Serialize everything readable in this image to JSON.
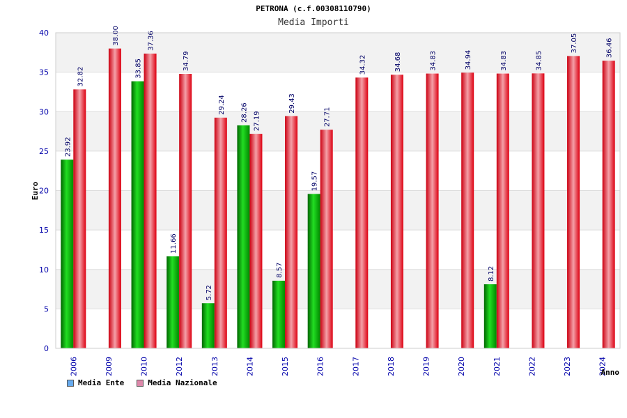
{
  "chart_data": {
    "type": "bar",
    "title": "PETRONA (c.f.00308110790)",
    "subtitle": "Media Importi",
    "xlabel": "Anno",
    "ylabel": "Euro",
    "ylim": [
      0,
      40
    ],
    "yticks": [
      0,
      5,
      10,
      15,
      20,
      25,
      30,
      35,
      40
    ],
    "grid": true,
    "legend_position": "bottom-left",
    "categories": [
      "2006",
      "2009",
      "2010",
      "2012",
      "2013",
      "2014",
      "2015",
      "2016",
      "2017",
      "2018",
      "2019",
      "2020",
      "2021",
      "2022",
      "2023",
      "2024"
    ],
    "series": [
      {
        "name": "Media Ente",
        "color": "#00aa00",
        "legend_color": "#66aaee",
        "values": [
          23.92,
          null,
          33.85,
          11.66,
          5.72,
          28.26,
          8.57,
          19.57,
          null,
          null,
          null,
          null,
          8.12,
          null,
          null,
          null
        ]
      },
      {
        "name": "Media Nazionale",
        "color": "#ee1122",
        "legend_color": "#dd88aa",
        "values": [
          32.82,
          38.0,
          37.36,
          34.79,
          29.24,
          27.19,
          29.43,
          27.71,
          34.32,
          34.68,
          34.83,
          34.94,
          34.83,
          34.85,
          37.05,
          36.46
        ]
      }
    ],
    "value_labels": [
      [
        "23.92",
        null,
        "33.85",
        "11.66",
        "5.72",
        "28.26",
        "8.57",
        "19.57",
        null,
        null,
        null,
        null,
        "8.12",
        null,
        null,
        null
      ],
      [
        "32.82",
        "38.00",
        "37.36",
        "34.79",
        "29.24",
        "27.19",
        "29.43",
        "27.71",
        "34.32",
        "34.68",
        "34.83",
        "34.94",
        "34.83",
        "34.85",
        "37.05",
        "36.46"
      ]
    ]
  }
}
